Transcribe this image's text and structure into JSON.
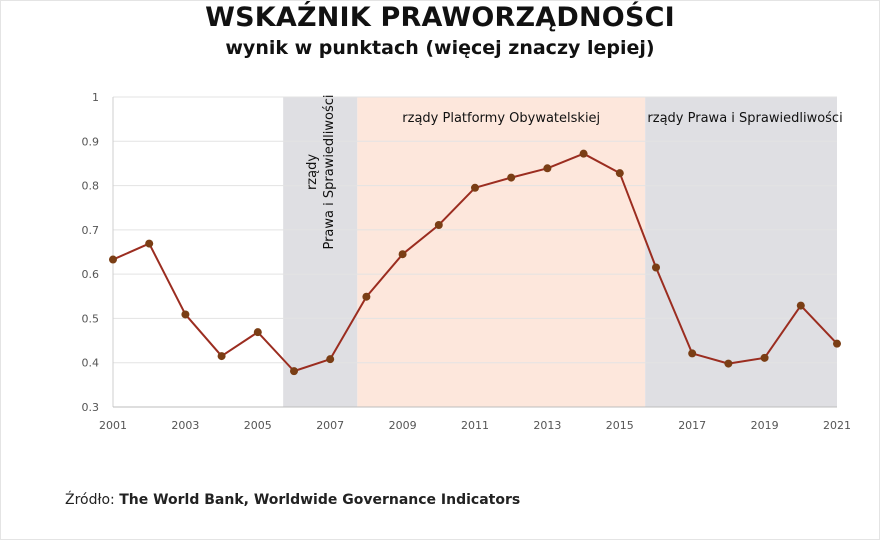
{
  "title": "WSKAŹNIK PRAWORZĄDNOŚCI",
  "subtitle": "wynik w punktach (więcej znaczy lepiej)",
  "source": {
    "prefix": "Źródło: ",
    "text": "The World Bank, Worldwide Governance Indicators"
  },
  "colors": {
    "line": "#9b2d20",
    "marker": "#7a3e15",
    "band_pis": "#dfdfe3",
    "band_po": "#fde7dc",
    "grid": "#e3e3e3"
  },
  "chart_data": {
    "type": "line",
    "title": "WSKAŹNIK PRAWORZĄDNOŚCI",
    "subtitle": "wynik w punktach (więcej znaczy lepiej)",
    "xlim": [
      2001,
      2021
    ],
    "ylim": [
      0.3,
      1
    ],
    "x_ticks": [
      2001,
      2003,
      2005,
      2007,
      2009,
      2011,
      2013,
      2015,
      2017,
      2019,
      2021
    ],
    "y_ticks": [
      0.3,
      0.4,
      0.5,
      0.6,
      0.7,
      0.8,
      0.9,
      1
    ],
    "y_tick_labels": [
      "0.3",
      "0.4",
      "0.5",
      "0.6",
      "0.7",
      "0.8",
      "0.9",
      "1"
    ],
    "grid": "horizontal",
    "series": [
      {
        "x": [
          2001,
          2002,
          2003,
          2004,
          2005,
          2006,
          2007,
          2008,
          2009,
          2010,
          2011,
          2012,
          2013,
          2014,
          2015,
          2016,
          2017,
          2018,
          2019,
          2020,
          2021
        ],
        "values": [
          0.633,
          0.669,
          0.509,
          0.415,
          0.469,
          0.381,
          0.408,
          0.549,
          0.645,
          0.711,
          0.795,
          0.818,
          0.839,
          0.872,
          0.828,
          0.615,
          0.421,
          0.398,
          0.411,
          0.529,
          0.443
        ]
      }
    ],
    "bands": [
      {
        "from": 2005.7,
        "to": 2007.75,
        "label_lines": [
          "rządy",
          "Prawa i Sprawiedliwości"
        ],
        "orientation": "vertical",
        "color": "#dfdfe3"
      },
      {
        "from": 2007.75,
        "to": 2015.7,
        "label_lines": [
          "rządy Platformy Obywatelskiej"
        ],
        "orientation": "horizontal",
        "color": "#fde7dc"
      },
      {
        "from": 2015.7,
        "to": 2021,
        "label_lines": [
          "rządy Prawa i Sprawiedliwości"
        ],
        "orientation": "horizontal",
        "color": "#dfdfe3"
      }
    ]
  }
}
